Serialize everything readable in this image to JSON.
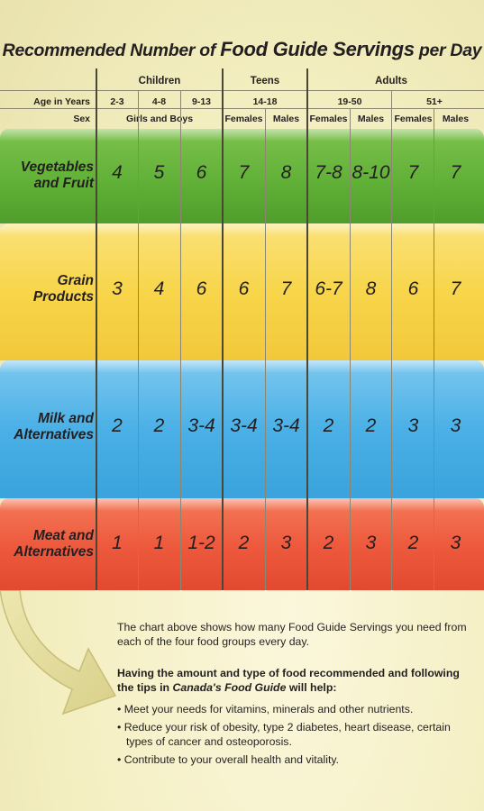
{
  "title": {
    "part1": "Recommended Number of ",
    "part2": "Food Guide Servings",
    "part3": " per Day"
  },
  "header": {
    "groups": [
      "Children",
      "Teens",
      "Adults"
    ],
    "age_label": "Age in Years",
    "ages": [
      "2-3",
      "4-8",
      "9-13",
      "14-18",
      "19-50",
      "51+"
    ],
    "sex_label": "Sex",
    "sexes": [
      "Girls and Boys",
      "Females",
      "Males",
      "Females",
      "Males",
      "Females",
      "Males"
    ]
  },
  "rows": [
    {
      "label_lines": [
        "Vegetables",
        "and Fruit"
      ],
      "values": [
        "4",
        "5",
        "6",
        "7",
        "8",
        "7-8",
        "8-10",
        "7",
        "7"
      ]
    },
    {
      "label_lines": [
        "Grain",
        "Products"
      ],
      "values": [
        "3",
        "4",
        "6",
        "6",
        "7",
        "6-7",
        "8",
        "6",
        "7"
      ]
    },
    {
      "label_lines": [
        "Milk and",
        "Alternatives"
      ],
      "values": [
        "2",
        "2",
        "3-4",
        "3-4",
        "3-4",
        "2",
        "2",
        "3",
        "3"
      ]
    },
    {
      "label_lines": [
        "Meat and",
        "Alternatives"
      ],
      "values": [
        "1",
        "1",
        "1-2",
        "2",
        "3",
        "2",
        "3",
        "2",
        "3"
      ]
    }
  ],
  "text": {
    "p1": "The chart above shows how many Food Guide Servings you need from each of the four food groups every day.",
    "p2_a": "Having the amount and type of food recommended and following the tips in ",
    "p2_em": "Canada's Food Guide",
    "p2_b": " will help:",
    "bullets": [
      "Meet your needs for vitamins, minerals and other nutrients.",
      "Reduce your risk of obesity, type 2 diabetes, heart disease, certain types of cancer and osteoporosis.",
      "Contribute to your overall health and vitality."
    ]
  },
  "colors": {
    "vegetables": "#5faf36",
    "grains": "#f8d54a",
    "milk": "#4ab0e6",
    "meat": "#ee5a3e",
    "background": "#f5f0c8"
  }
}
